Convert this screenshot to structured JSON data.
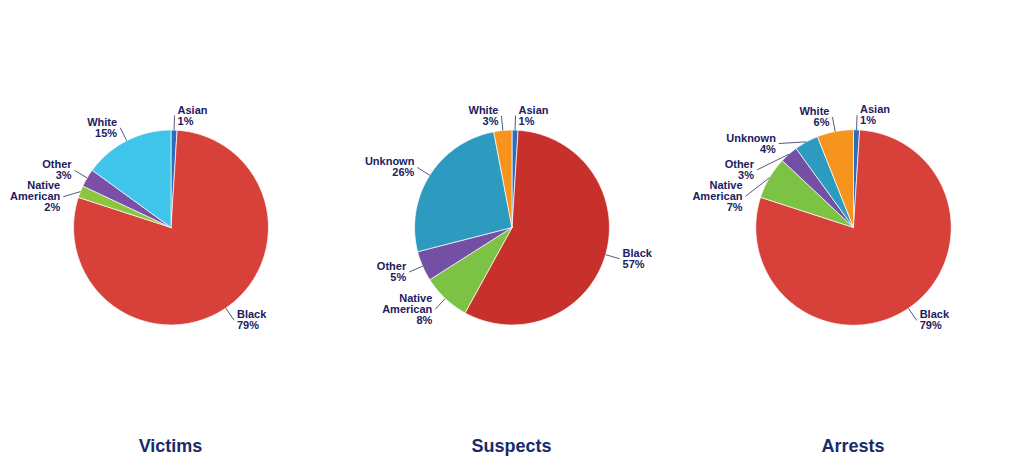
{
  "chart_data": [
    {
      "type": "pie",
      "title": "Victims",
      "categories": [
        "Asian",
        "Black",
        "Native American",
        "Other",
        "White"
      ],
      "values": [
        1,
        79,
        2,
        3,
        15
      ],
      "value_labels": [
        "1%",
        "79%",
        "2%",
        "3%",
        "15%"
      ],
      "colors": [
        "#2a6ebb",
        "#d8403a",
        "#8cc540",
        "#7a4fa8",
        "#3fc4ea"
      ],
      "data_labels": true
    },
    {
      "type": "pie",
      "title": "Suspects",
      "categories": [
        "Asian",
        "Black",
        "Native American",
        "Other",
        "Unknown",
        "White"
      ],
      "values": [
        1,
        57,
        8,
        5,
        26,
        3
      ],
      "value_labels": [
        "1%",
        "57%",
        "8%",
        "5%",
        "26%",
        "3%"
      ],
      "colors": [
        "#2a6ebb",
        "#c7302b",
        "#7cc244",
        "#7350a6",
        "#2d9bc0",
        "#f7941e"
      ],
      "data_labels": true
    },
    {
      "type": "pie",
      "title": "Arrests",
      "categories": [
        "Asian",
        "Black",
        "Native American",
        "Other",
        "Unknown",
        "White"
      ],
      "values": [
        1,
        79,
        7,
        3,
        4,
        6
      ],
      "value_labels": [
        "1%",
        "79%",
        "7%",
        "3%",
        "4%",
        "6%"
      ],
      "colors": [
        "#2a6ebb",
        "#d8403a",
        "#7cc244",
        "#7350a6",
        "#2d9bc0",
        "#f7941e"
      ],
      "data_labels": true
    }
  ]
}
